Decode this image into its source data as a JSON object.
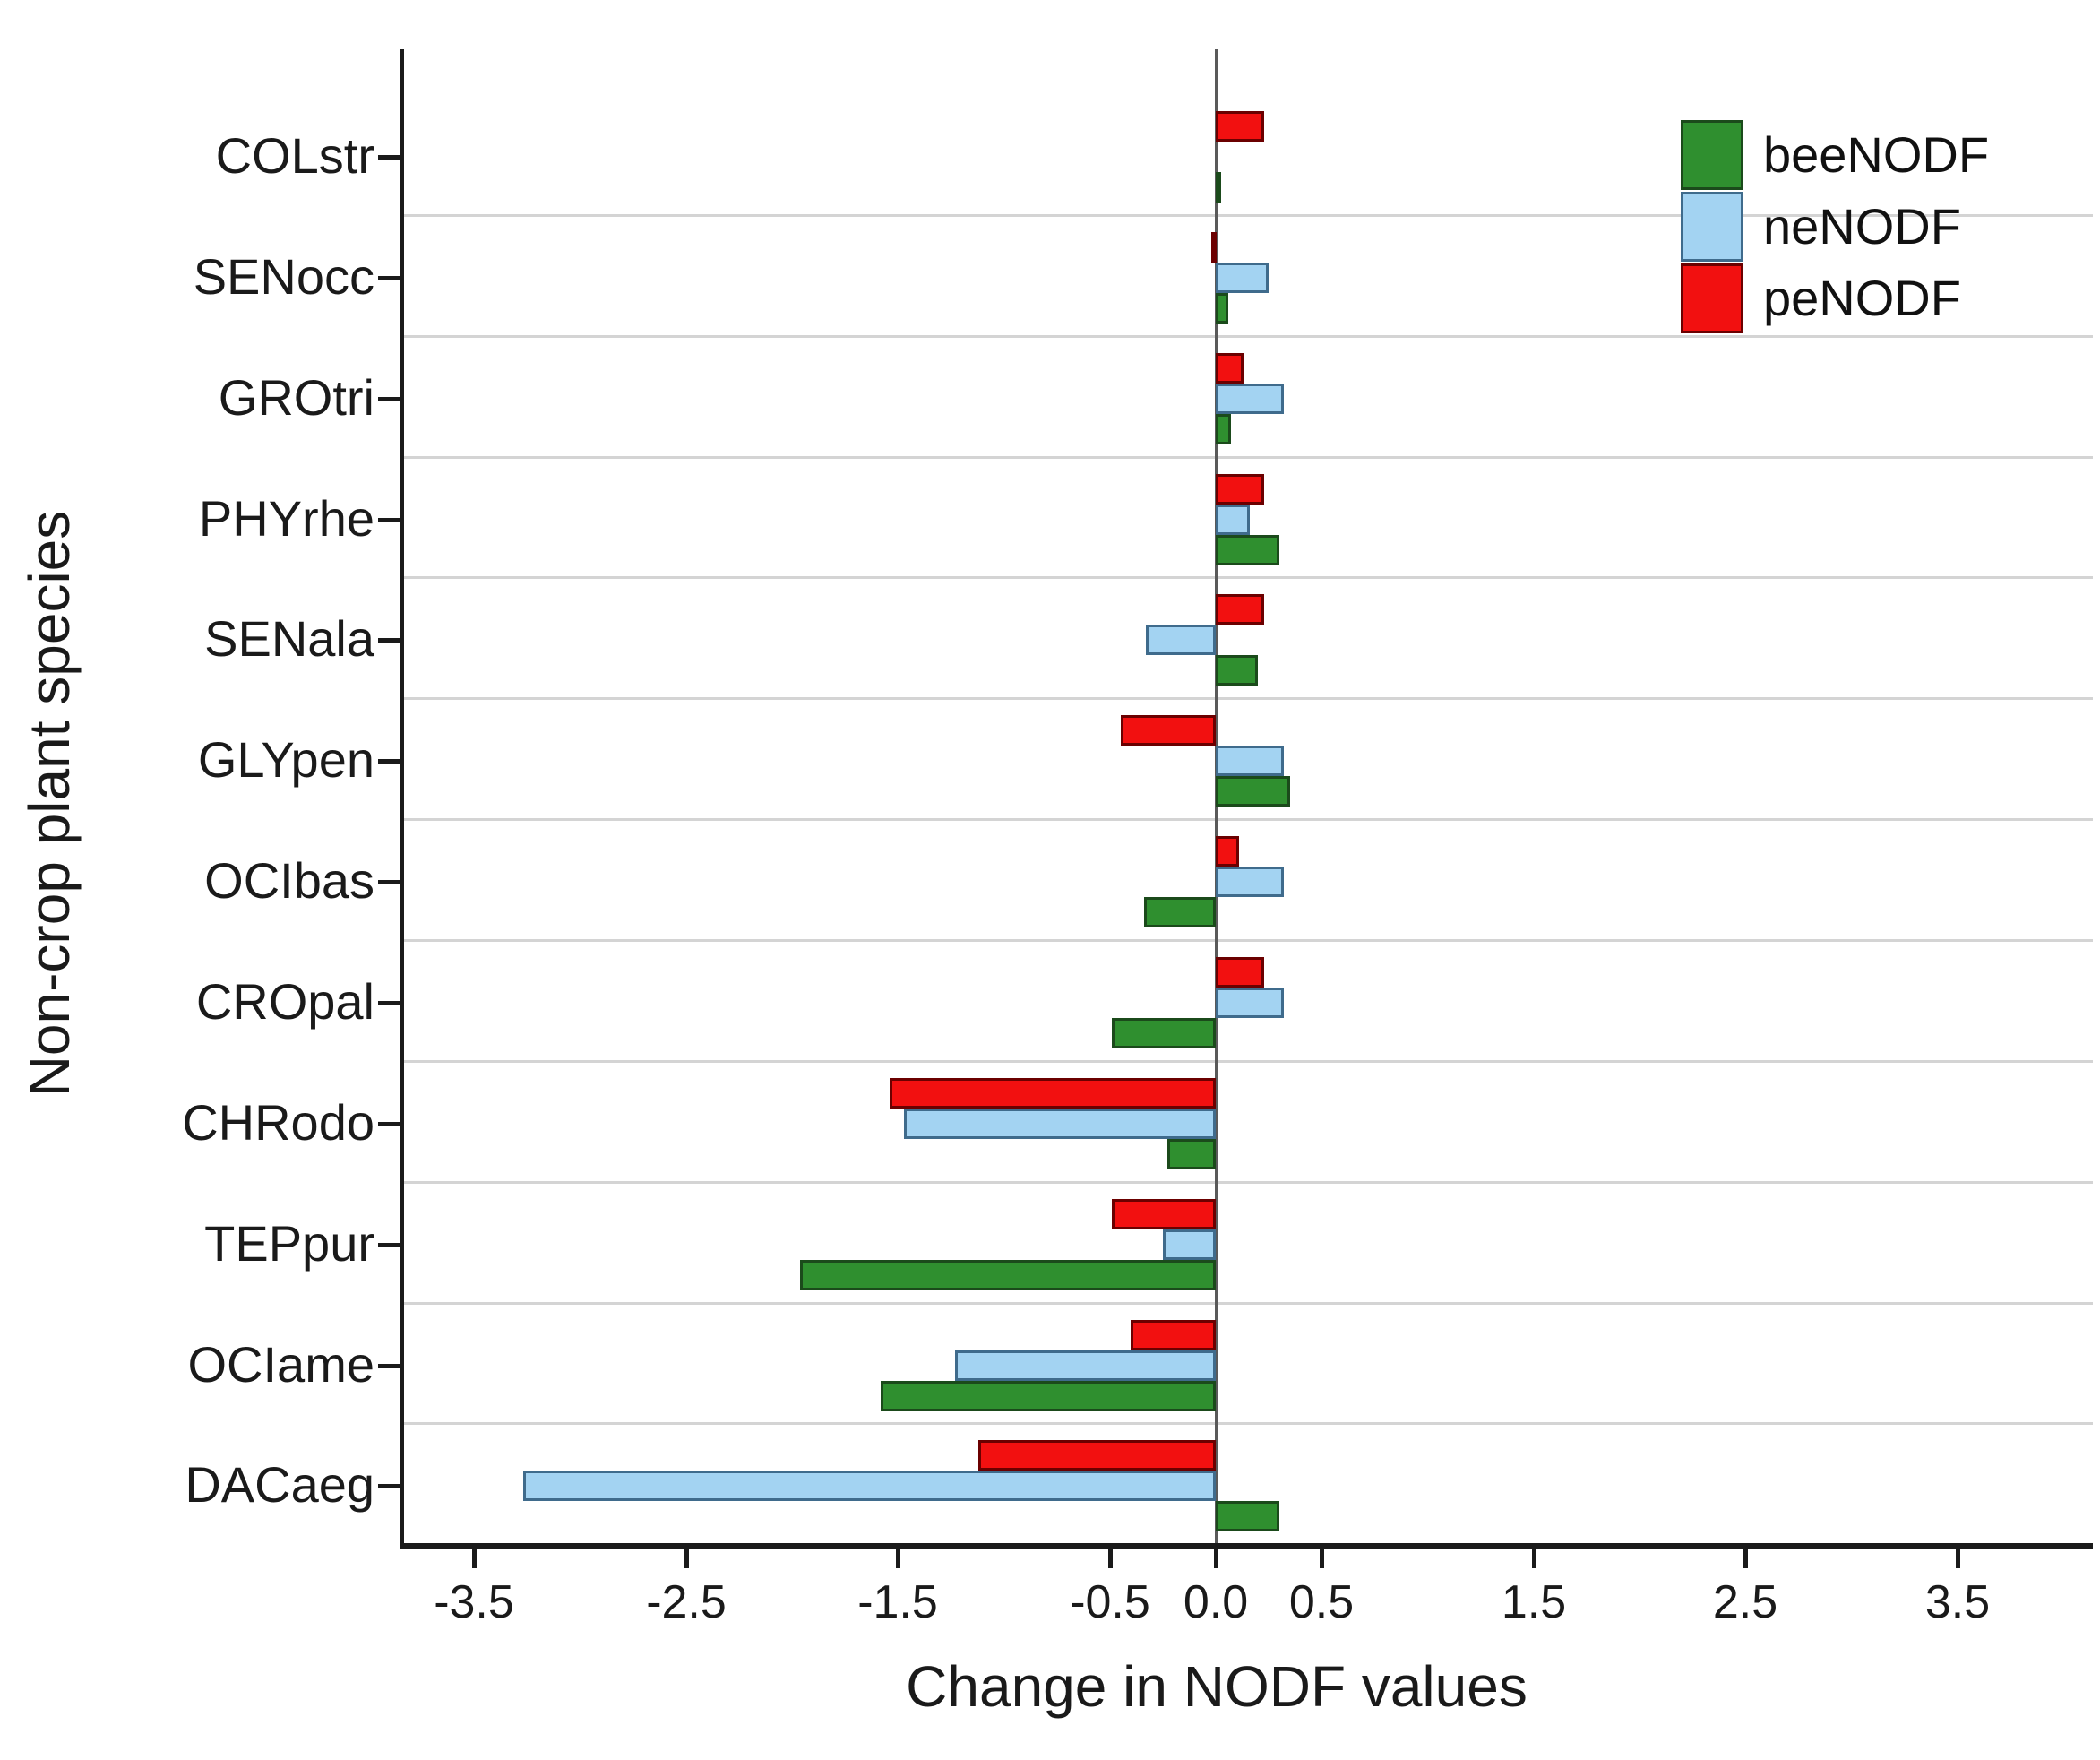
{
  "figure": {
    "xlabel": "Change in NODF values",
    "ylabel": "Non-crop plant species"
  },
  "legend": {
    "position": "top-right",
    "entries": [
      "beeNODF",
      "neNODF",
      "peNODF"
    ]
  },
  "chart_data": {
    "type": "bar",
    "orientation": "horizontal",
    "title": "",
    "xlabel": "Change in NODF values",
    "ylabel": "Non-crop plant species",
    "categories": [
      "COLstr",
      "SENocc",
      "GROtri",
      "PHYrhe",
      "SENala",
      "GLYpen",
      "OCIbas",
      "CROpal",
      "CHRodo",
      "TEPpur",
      "OCIame",
      "DACaeg"
    ],
    "series": [
      {
        "name": "beeNODF",
        "color": "#2f8f2f",
        "border_color": "#1b4a1b",
        "values": [
          0.01,
          0.06,
          0.07,
          0.3,
          0.2,
          0.35,
          -0.34,
          -0.49,
          -0.23,
          -1.96,
          -1.58,
          0.3
        ]
      },
      {
        "name": "neNODF",
        "color": "#a3d3f2",
        "border_color": "#3f6b8c",
        "values": [
          0.0,
          0.25,
          0.32,
          0.16,
          -0.33,
          0.32,
          0.32,
          0.32,
          -1.47,
          -0.25,
          -1.23,
          -3.27
        ]
      },
      {
        "name": "peNODF",
        "color": "#f21010",
        "border_color": "#6b0000",
        "values": [
          0.23,
          -0.02,
          0.13,
          0.23,
          0.23,
          -0.45,
          0.11,
          0.23,
          -1.54,
          -0.49,
          -0.4,
          -1.12
        ]
      }
    ],
    "bar_row_order_top_to_bottom": [
      "peNODF",
      "neNODF",
      "beeNODF"
    ],
    "x_ticks": [
      -3.5,
      -2.5,
      -1.5,
      -0.5,
      0.0,
      0.5,
      1.5,
      2.5,
      3.5
    ],
    "x_tick_labels": [
      "-3.5",
      "-2.5",
      "-1.5",
      "-0.5",
      "0.0",
      "0.5",
      "1.5",
      "2.5",
      "3.5"
    ],
    "xlim": [
      -3.84,
      4.14
    ],
    "grid": "horizontal category-separator gridlines",
    "zero_reference_line": true
  }
}
